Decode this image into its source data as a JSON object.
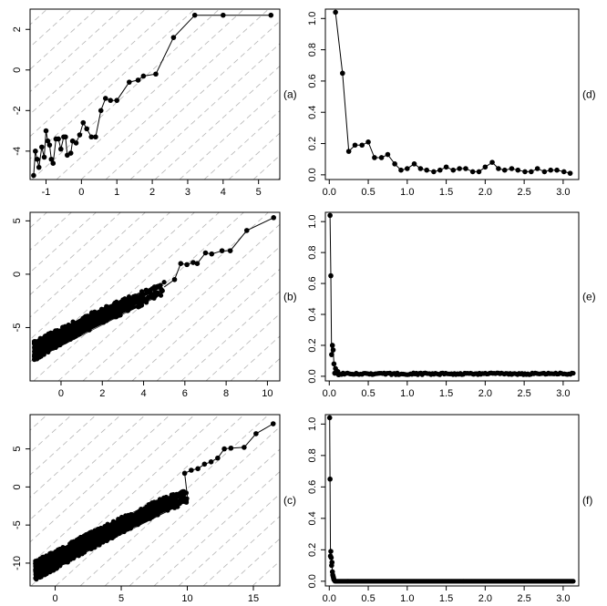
{
  "chart_data": [
    {
      "type": "line",
      "panel": "a",
      "label": "(a)",
      "xlim": [
        -1.45,
        5.6
      ],
      "ylim": [
        -5.4,
        3.0
      ],
      "xticks": [
        -1,
        0,
        1,
        2,
        3,
        4,
        5
      ],
      "yticks": [
        -4,
        -2,
        0,
        2
      ],
      "xtick_labels": [
        "-1",
        "0",
        "1",
        "2",
        "3",
        "4",
        "5"
      ],
      "ytick_labels": [
        "-4",
        "-2",
        "0",
        "2"
      ],
      "grid": "dashed diagonal lines",
      "markers": "filled circles",
      "x": [
        -1.35,
        -1.3,
        -1.25,
        -1.2,
        -1.12,
        -1.05,
        -1.0,
        -0.95,
        -0.9,
        -0.85,
        -0.8,
        -0.72,
        -0.65,
        -0.58,
        -0.5,
        -0.45,
        -0.4,
        -0.3,
        -0.25,
        -0.15,
        -0.05,
        0.05,
        0.15,
        0.28,
        0.4,
        0.55,
        0.68,
        0.82,
        1.0,
        1.35,
        1.6,
        1.75,
        2.1,
        2.6,
        3.2,
        4.0,
        5.35
      ],
      "y": [
        -5.2,
        -4.0,
        -4.4,
        -4.8,
        -3.8,
        -4.3,
        -3.0,
        -3.5,
        -3.7,
        -4.4,
        -4.6,
        -3.4,
        -3.4,
        -3.9,
        -3.3,
        -3.3,
        -4.2,
        -4.1,
        -3.5,
        -3.6,
        -3.2,
        -2.6,
        -2.9,
        -3.3,
        -3.3,
        -2.0,
        -1.4,
        -1.5,
        -1.5,
        -0.6,
        -0.5,
        -0.3,
        -0.2,
        1.6,
        2.7,
        2.7,
        2.7
      ]
    },
    {
      "type": "line",
      "panel": "d",
      "label": "(d)",
      "xlim": [
        -0.05,
        3.2
      ],
      "ylim": [
        -0.03,
        1.06
      ],
      "xticks": [
        0,
        0.5,
        1,
        1.5,
        2,
        2.5,
        3
      ],
      "yticks": [
        0,
        0.2,
        0.4,
        0.6,
        0.8,
        1
      ],
      "xtick_labels": [
        "0.0",
        "0.5",
        "1.0",
        "1.5",
        "2.0",
        "2.5",
        "3.0"
      ],
      "ytick_labels": [
        "0.0",
        "0.2",
        "0.4",
        "0.6",
        "0.8",
        "1.0"
      ],
      "markers": "filled circles",
      "x": [
        0.08,
        0.17,
        0.25,
        0.33,
        0.42,
        0.5,
        0.58,
        0.67,
        0.75,
        0.84,
        0.92,
        1.0,
        1.09,
        1.17,
        1.25,
        1.34,
        1.42,
        1.5,
        1.59,
        1.67,
        1.75,
        1.84,
        1.92,
        2.0,
        2.09,
        2.17,
        2.25,
        2.34,
        2.42,
        2.51,
        2.59,
        2.67,
        2.76,
        2.84,
        2.92,
        3.01,
        3.09
      ],
      "y": [
        1.04,
        0.65,
        0.15,
        0.19,
        0.19,
        0.21,
        0.11,
        0.11,
        0.13,
        0.07,
        0.03,
        0.04,
        0.07,
        0.04,
        0.03,
        0.02,
        0.03,
        0.05,
        0.03,
        0.04,
        0.04,
        0.02,
        0.02,
        0.05,
        0.08,
        0.04,
        0.03,
        0.04,
        0.03,
        0.02,
        0.02,
        0.04,
        0.02,
        0.03,
        0.03,
        0.02,
        0.01
      ]
    },
    {
      "type": "line",
      "panel": "b",
      "label": "(b)",
      "xlim": [
        -1.5,
        10.6
      ],
      "ylim": [
        -10.0,
        5.8
      ],
      "xticks": [
        0,
        2,
        4,
        6,
        8,
        10
      ],
      "yticks": [
        -5,
        0,
        5
      ],
      "xtick_labels": [
        "0",
        "2",
        "4",
        "6",
        "8",
        "10"
      ],
      "ytick_labels": [
        "-5",
        "0",
        "5"
      ],
      "grid": "dashed diagonal lines",
      "markers": "filled circles",
      "trend": [
        [
          -1.3,
          -7.2
        ],
        [
          0,
          -5.8
        ],
        [
          1,
          -4.8
        ],
        [
          2,
          -3.9
        ],
        [
          3,
          -3.0
        ],
        [
          4,
          -2.2
        ],
        [
          5,
          -1.2
        ]
      ],
      "x": [
        5.5,
        5.8,
        6.1,
        6.4,
        6.6,
        7.0,
        7.3,
        7.8,
        8.2,
        9.0,
        10.3
      ],
      "y": [
        -0.5,
        1.0,
        0.9,
        1.1,
        1.0,
        2.0,
        1.9,
        2.2,
        2.2,
        4.1,
        5.3
      ]
    },
    {
      "type": "line",
      "panel": "e",
      "label": "(e)",
      "xlim": [
        -0.05,
        3.2
      ],
      "ylim": [
        -0.03,
        1.06
      ],
      "xticks": [
        0,
        0.5,
        1,
        1.5,
        2,
        2.5,
        3
      ],
      "yticks": [
        0,
        0.2,
        0.4,
        0.6,
        0.8,
        1
      ],
      "xtick_labels": [
        "0.0",
        "0.5",
        "1.0",
        "1.5",
        "2.0",
        "2.5",
        "3.0"
      ],
      "ytick_labels": [
        "0.0",
        "0.2",
        "0.4",
        "0.6",
        "0.8",
        "1.0"
      ],
      "markers": "filled circles",
      "x": [
        0.01,
        0.02,
        0.03,
        0.04,
        0.05,
        0.06,
        0.07,
        0.08,
        0.09,
        0.1,
        0.11,
        0.12
      ],
      "y": [
        1.04,
        0.65,
        0.14,
        0.2,
        0.17,
        0.08,
        0.02,
        0.05,
        0.03,
        0.02,
        0.03,
        0.01
      ],
      "tail_level": 0.01
    },
    {
      "type": "line",
      "panel": "c",
      "label": "(c)",
      "xlim": [
        -1.9,
        17.0
      ],
      "ylim": [
        -13.0,
        9.5
      ],
      "xticks": [
        0,
        5,
        10,
        15
      ],
      "yticks": [
        -10,
        -5,
        0,
        5
      ],
      "xtick_labels": [
        "0",
        "5",
        "10",
        "15"
      ],
      "ytick_labels": [
        "-10",
        "-5",
        "0",
        "5"
      ],
      "grid": "dashed diagonal lines",
      "markers": "filled circles",
      "trend": [
        [
          -1.5,
          -11.0
        ],
        [
          2,
          -7.7
        ],
        [
          5,
          -5.0
        ],
        [
          8,
          -2.5
        ],
        [
          10,
          -1.2
        ]
      ],
      "x": [
        9.8,
        10.3,
        10.8,
        11.3,
        11.8,
        12.3,
        12.8,
        13.3,
        14.3,
        15.2,
        16.5
      ],
      "y": [
        1.8,
        2.2,
        2.4,
        3.0,
        3.3,
        3.8,
        5.0,
        5.1,
        5.2,
        7.0,
        8.3
      ]
    },
    {
      "type": "line",
      "panel": "f",
      "label": "(f)",
      "xlim": [
        -0.05,
        3.2
      ],
      "ylim": [
        -0.03,
        1.06
      ],
      "xticks": [
        0,
        0.5,
        1,
        1.5,
        2,
        2.5,
        3
      ],
      "yticks": [
        0,
        0.2,
        0.4,
        0.6,
        0.8,
        1
      ],
      "xtick_labels": [
        "0.0",
        "0.5",
        "1.0",
        "1.5",
        "2.0",
        "2.5",
        "3.0"
      ],
      "ytick_labels": [
        "0.0",
        "0.2",
        "0.4",
        "0.6",
        "0.8",
        "1.0"
      ],
      "markers": "filled circles",
      "x": [
        0.005,
        0.01,
        0.015,
        0.02,
        0.025,
        0.03,
        0.035,
        0.04,
        0.045,
        0.05,
        0.055,
        0.06
      ],
      "y": [
        1.04,
        0.65,
        0.16,
        0.19,
        0.15,
        0.1,
        0.12,
        0.06,
        0.04,
        0.03,
        0.02,
        0.01
      ],
      "tail_level": 0.0
    }
  ]
}
